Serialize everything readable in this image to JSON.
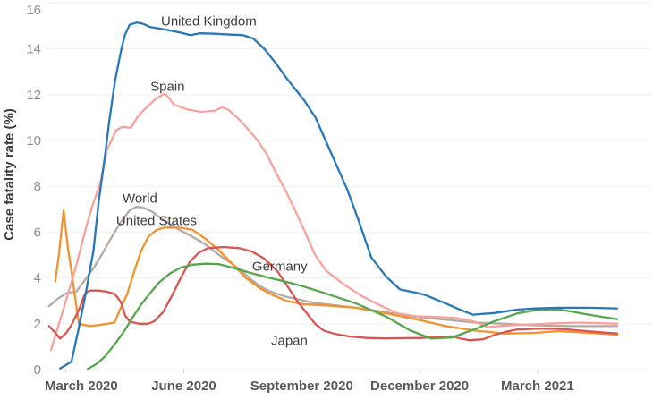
{
  "chart_data": {
    "type": "line",
    "title": "",
    "ylabel": "Case fatality rate (%)",
    "xlabel": "",
    "ylim": [
      0,
      16
    ],
    "y_ticks": [
      0,
      2,
      4,
      6,
      8,
      10,
      12,
      14,
      16
    ],
    "x_unit": "months since 2020-03-01",
    "xlim": [
      -0.5,
      14.2
    ],
    "grid": true,
    "legend_position": "inline-annotations",
    "x_ticks": [
      {
        "label": "March 2020",
        "t": 0
      },
      {
        "label": "June 2020",
        "t": 3
      },
      {
        "label": "September 2020",
        "t": 6
      },
      {
        "label": "December 2020",
        "t": 9
      },
      {
        "label": "March 2021",
        "t": 12
      }
    ],
    "series": [
      {
        "name": "World",
        "color": "#b5aba4",
        "points": [
          [
            -0.43,
            2.77
          ],
          [
            -0.2,
            3.1
          ],
          [
            0.03,
            3.35
          ],
          [
            0.26,
            3.4
          ],
          [
            0.48,
            3.9
          ],
          [
            0.71,
            4.45
          ],
          [
            0.94,
            5.1
          ],
          [
            1.17,
            5.8
          ],
          [
            1.4,
            6.45
          ],
          [
            1.62,
            6.95
          ],
          [
            1.78,
            7.1
          ],
          [
            1.96,
            7.08
          ],
          [
            2.19,
            6.9
          ],
          [
            2.42,
            6.6
          ],
          [
            2.65,
            6.35
          ],
          [
            2.88,
            6.1
          ],
          [
            3.22,
            5.8
          ],
          [
            3.56,
            5.45
          ],
          [
            3.9,
            5.0
          ],
          [
            4.24,
            4.6
          ],
          [
            4.47,
            4.3
          ],
          [
            4.7,
            3.95
          ],
          [
            4.93,
            3.65
          ],
          [
            5.15,
            3.45
          ],
          [
            5.38,
            3.3
          ],
          [
            5.61,
            3.18
          ],
          [
            5.95,
            3.05
          ],
          [
            6.29,
            2.92
          ],
          [
            6.63,
            2.85
          ],
          [
            7.38,
            2.7
          ],
          [
            8.16,
            2.5
          ],
          [
            8.91,
            2.3
          ],
          [
            9.66,
            2.18
          ],
          [
            10.43,
            2.05
          ],
          [
            11.19,
            2.0
          ],
          [
            11.94,
            1.93
          ],
          [
            12.89,
            1.9
          ],
          [
            14.03,
            1.9
          ]
        ]
      },
      {
        "name": "United States",
        "color": "#f0932e",
        "points": [
          [
            -0.27,
            3.85
          ],
          [
            -0.18,
            5.0
          ],
          [
            -0.06,
            6.95
          ],
          [
            0.05,
            5.3
          ],
          [
            0.14,
            4.3
          ],
          [
            0.23,
            3.2
          ],
          [
            0.33,
            2.0
          ],
          [
            0.6,
            1.9
          ],
          [
            0.87,
            1.95
          ],
          [
            1.05,
            2.0
          ],
          [
            1.24,
            2.05
          ],
          [
            1.37,
            2.6
          ],
          [
            1.56,
            3.3
          ],
          [
            1.74,
            4.3
          ],
          [
            1.92,
            5.2
          ],
          [
            2.1,
            5.8
          ],
          [
            2.31,
            6.1
          ],
          [
            2.53,
            6.2
          ],
          [
            2.88,
            6.2
          ],
          [
            3.22,
            6.1
          ],
          [
            3.56,
            5.7
          ],
          [
            3.9,
            5.2
          ],
          [
            4.24,
            4.6
          ],
          [
            4.58,
            4.0
          ],
          [
            4.93,
            3.55
          ],
          [
            5.27,
            3.25
          ],
          [
            5.61,
            3.0
          ],
          [
            6.06,
            2.85
          ],
          [
            6.63,
            2.8
          ],
          [
            7.38,
            2.7
          ],
          [
            8.16,
            2.45
          ],
          [
            8.91,
            2.2
          ],
          [
            9.66,
            1.9
          ],
          [
            10.43,
            1.7
          ],
          [
            11.19,
            1.57
          ],
          [
            11.94,
            1.6
          ],
          [
            12.55,
            1.68
          ],
          [
            13.3,
            1.6
          ],
          [
            14.03,
            1.52
          ]
        ]
      },
      {
        "name": "Spain",
        "color": "#f9a29d",
        "points": [
          [
            -0.38,
            0.85
          ],
          [
            -0.04,
            2.77
          ],
          [
            0.26,
            4.53
          ],
          [
            0.55,
            6.45
          ],
          [
            0.71,
            7.34
          ],
          [
            0.87,
            8.1
          ],
          [
            1.05,
            9.6
          ],
          [
            1.28,
            10.45
          ],
          [
            1.45,
            10.6
          ],
          [
            1.65,
            10.55
          ],
          [
            1.85,
            11.1
          ],
          [
            2.08,
            11.5
          ],
          [
            2.31,
            11.85
          ],
          [
            2.53,
            12.05
          ],
          [
            2.76,
            11.55
          ],
          [
            3.1,
            11.35
          ],
          [
            3.44,
            11.25
          ],
          [
            3.79,
            11.3
          ],
          [
            3.97,
            11.45
          ],
          [
            4.13,
            11.35
          ],
          [
            4.36,
            11.0
          ],
          [
            4.58,
            10.6
          ],
          [
            4.88,
            10.0
          ],
          [
            5.11,
            9.4
          ],
          [
            5.33,
            8.65
          ],
          [
            5.56,
            7.9
          ],
          [
            5.79,
            7.1
          ],
          [
            6.06,
            6.1
          ],
          [
            6.34,
            5.0
          ],
          [
            6.63,
            4.3
          ],
          [
            7.09,
            3.7
          ],
          [
            7.54,
            3.2
          ],
          [
            8.0,
            2.8
          ],
          [
            8.45,
            2.45
          ],
          [
            8.91,
            2.33
          ],
          [
            9.48,
            2.3
          ],
          [
            9.93,
            2.25
          ],
          [
            10.39,
            2.1
          ],
          [
            10.73,
            1.85
          ],
          [
            11.19,
            1.92
          ],
          [
            11.76,
            1.97
          ],
          [
            12.44,
            2.02
          ],
          [
            13.12,
            2.05
          ],
          [
            14.03,
            2.0
          ]
        ]
      },
      {
        "name": "Japan",
        "color": "#dc5452",
        "points": [
          [
            -0.43,
            1.9
          ],
          [
            -0.27,
            1.6
          ],
          [
            -0.15,
            1.35
          ],
          [
            0.01,
            1.6
          ],
          [
            0.14,
            1.95
          ],
          [
            0.33,
            2.6
          ],
          [
            0.48,
            3.3
          ],
          [
            0.6,
            3.45
          ],
          [
            0.83,
            3.45
          ],
          [
            1.05,
            3.4
          ],
          [
            1.24,
            3.3
          ],
          [
            1.4,
            2.95
          ],
          [
            1.51,
            2.35
          ],
          [
            1.62,
            2.1
          ],
          [
            1.85,
            2.0
          ],
          [
            2.08,
            2.0
          ],
          [
            2.24,
            2.1
          ],
          [
            2.47,
            2.5
          ],
          [
            2.69,
            3.2
          ],
          [
            2.92,
            4.0
          ],
          [
            3.15,
            4.7
          ],
          [
            3.38,
            5.1
          ],
          [
            3.61,
            5.3
          ],
          [
            4.01,
            5.35
          ],
          [
            4.42,
            5.3
          ],
          [
            4.74,
            5.15
          ],
          [
            5.04,
            4.85
          ],
          [
            5.38,
            4.3
          ],
          [
            5.65,
            3.6
          ],
          [
            5.88,
            3.0
          ],
          [
            6.11,
            2.5
          ],
          [
            6.34,
            2.0
          ],
          [
            6.56,
            1.7
          ],
          [
            6.86,
            1.55
          ],
          [
            7.2,
            1.45
          ],
          [
            7.66,
            1.38
          ],
          [
            8.11,
            1.36
          ],
          [
            8.57,
            1.37
          ],
          [
            9.02,
            1.38
          ],
          [
            9.48,
            1.42
          ],
          [
            9.82,
            1.45
          ],
          [
            10.05,
            1.35
          ],
          [
            10.27,
            1.28
          ],
          [
            10.61,
            1.32
          ],
          [
            10.89,
            1.5
          ],
          [
            11.19,
            1.65
          ],
          [
            11.48,
            1.75
          ],
          [
            11.94,
            1.78
          ],
          [
            12.32,
            1.78
          ],
          [
            12.71,
            1.76
          ],
          [
            13.12,
            1.7
          ],
          [
            13.58,
            1.63
          ],
          [
            14.03,
            1.58
          ]
        ]
      },
      {
        "name": "Germany",
        "color": "#55a74e",
        "points": [
          [
            0.55,
            0.02
          ],
          [
            0.78,
            0.25
          ],
          [
            1.01,
            0.6
          ],
          [
            1.24,
            1.1
          ],
          [
            1.47,
            1.65
          ],
          [
            1.69,
            2.25
          ],
          [
            1.92,
            2.85
          ],
          [
            2.15,
            3.35
          ],
          [
            2.37,
            3.8
          ],
          [
            2.65,
            4.2
          ],
          [
            2.92,
            4.45
          ],
          [
            3.22,
            4.58
          ],
          [
            3.56,
            4.62
          ],
          [
            3.9,
            4.6
          ],
          [
            4.24,
            4.45
          ],
          [
            4.7,
            4.22
          ],
          [
            5.15,
            4.02
          ],
          [
            5.61,
            3.83
          ],
          [
            6.06,
            3.62
          ],
          [
            6.56,
            3.35
          ],
          [
            7.38,
            2.89
          ],
          [
            8.16,
            2.3
          ],
          [
            8.75,
            1.72
          ],
          [
            9.29,
            1.35
          ],
          [
            9.82,
            1.4
          ],
          [
            10.43,
            1.78
          ],
          [
            10.89,
            2.1
          ],
          [
            11.48,
            2.45
          ],
          [
            11.98,
            2.6
          ],
          [
            12.55,
            2.63
          ],
          [
            13.3,
            2.4
          ],
          [
            14.03,
            2.2
          ]
        ]
      },
      {
        "name": "United Kingdom",
        "color": "#2878b8",
        "points": [
          [
            -0.15,
            0.05
          ],
          [
            0.0,
            0.2
          ],
          [
            0.14,
            0.35
          ],
          [
            0.3,
            1.6
          ],
          [
            0.5,
            3.3
          ],
          [
            0.7,
            5.2
          ],
          [
            0.83,
            7.3
          ],
          [
            1.0,
            9.4
          ],
          [
            1.1,
            10.8
          ],
          [
            1.25,
            12.6
          ],
          [
            1.4,
            13.9
          ],
          [
            1.5,
            14.6
          ],
          [
            1.62,
            15.05
          ],
          [
            1.8,
            15.15
          ],
          [
            1.95,
            15.1
          ],
          [
            2.15,
            14.95
          ],
          [
            2.5,
            14.85
          ],
          [
            2.9,
            14.72
          ],
          [
            3.17,
            14.6
          ],
          [
            3.4,
            14.68
          ],
          [
            3.8,
            14.66
          ],
          [
            4.2,
            14.62
          ],
          [
            4.5,
            14.6
          ],
          [
            4.77,
            14.45
          ],
          [
            5.05,
            14.0
          ],
          [
            5.35,
            13.35
          ],
          [
            5.6,
            12.75
          ],
          [
            6.05,
            11.78
          ],
          [
            6.35,
            11.0
          ],
          [
            6.75,
            9.45
          ],
          [
            7.15,
            7.9
          ],
          [
            7.45,
            6.5
          ],
          [
            7.77,
            4.9
          ],
          [
            8.15,
            4.06
          ],
          [
            8.5,
            3.5
          ],
          [
            8.9,
            3.36
          ],
          [
            9.15,
            3.25
          ],
          [
            9.65,
            2.9
          ],
          [
            10.05,
            2.6
          ],
          [
            10.35,
            2.4
          ],
          [
            10.9,
            2.47
          ],
          [
            11.5,
            2.62
          ],
          [
            11.95,
            2.67
          ],
          [
            12.5,
            2.7
          ],
          [
            13.3,
            2.7
          ],
          [
            14.03,
            2.67
          ]
        ]
      }
    ],
    "annotations": [
      {
        "text": "United Kingdom",
        "t": 2.42,
        "v": 15.2
      },
      {
        "text": "Spain",
        "t": 2.15,
        "v": 12.35
      },
      {
        "text": "World",
        "t": 1.44,
        "v": 7.46
      },
      {
        "text": "United States",
        "t": 1.28,
        "v": 6.48
      },
      {
        "text": "Germany",
        "t": 4.74,
        "v": 4.49
      },
      {
        "text": "Japan",
        "t": 5.22,
        "v": 1.25
      }
    ]
  },
  "colors": {
    "background": "#ffffff",
    "grid": "#f1efed",
    "tick_mark": "#d9d9d9",
    "y_label": "#8f8f8f",
    "x_label": "#595959",
    "annotation": "#3d3d3d",
    "axis_title": "#3d3d3d"
  }
}
